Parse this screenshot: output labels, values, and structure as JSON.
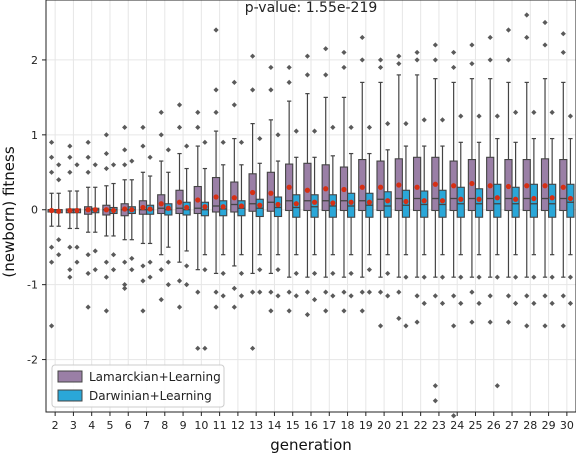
{
  "chart_data": {
    "type": "box",
    "title": "p-value: 1.55e-219",
    "xlabel": "generation",
    "ylabel": "(newborn) fitness",
    "categories": [
      "2",
      "3",
      "4",
      "5",
      "6",
      "7",
      "8",
      "9",
      "10",
      "11",
      "12",
      "13",
      "14",
      "15",
      "16",
      "17",
      "18",
      "19",
      "20",
      "21",
      "22",
      "23",
      "24",
      "25",
      "26",
      "27",
      "28",
      "29",
      "30"
    ],
    "ylim": [
      -2.7,
      2.8
    ],
    "yticks": [
      -2,
      -1,
      0,
      1,
      2
    ],
    "grid": true,
    "legend_position": "lower-left",
    "series": [
      {
        "name": "Lamarckian+Learning",
        "color": "#9a7fa6",
        "median": [
          0.0,
          -0.01,
          0.0,
          0.0,
          0.0,
          0.0,
          0.02,
          0.02,
          0.02,
          0.05,
          0.07,
          0.08,
          0.1,
          0.12,
          0.12,
          0.12,
          0.12,
          0.12,
          0.14,
          0.15,
          0.15,
          0.15,
          0.15,
          0.15,
          0.15,
          0.15,
          0.15,
          0.15,
          0.15
        ],
        "q1": [
          -0.03,
          -0.04,
          -0.06,
          -0.07,
          -0.08,
          -0.06,
          -0.05,
          -0.05,
          -0.05,
          -0.03,
          -0.03,
          -0.02,
          -0.02,
          -0.01,
          -0.01,
          -0.01,
          -0.01,
          -0.01,
          -0.01,
          -0.01,
          -0.01,
          -0.01,
          -0.01,
          -0.01,
          -0.01,
          -0.01,
          -0.01,
          -0.01,
          -0.01
        ],
        "q3": [
          0.0,
          0.01,
          0.04,
          0.06,
          0.08,
          0.12,
          0.2,
          0.26,
          0.31,
          0.43,
          0.37,
          0.48,
          0.5,
          0.61,
          0.62,
          0.6,
          0.57,
          0.67,
          0.65,
          0.68,
          0.7,
          0.7,
          0.65,
          0.67,
          0.7,
          0.67,
          0.67,
          0.68,
          0.67
        ],
        "whisker_low": [
          -0.22,
          -0.25,
          -0.3,
          -0.35,
          -0.4,
          -0.45,
          -0.6,
          -0.7,
          -0.8,
          -0.85,
          -0.75,
          -0.85,
          -0.85,
          -0.9,
          -0.9,
          -0.9,
          -0.9,
          -0.9,
          -0.9,
          -0.9,
          -0.9,
          -0.9,
          -0.9,
          -0.9,
          -0.9,
          -0.9,
          -0.9,
          -0.9,
          -0.9
        ],
        "whisker_high": [
          0.22,
          0.25,
          0.3,
          0.32,
          0.4,
          0.5,
          0.65,
          0.75,
          0.85,
          1.05,
          0.95,
          1.15,
          1.2,
          1.45,
          1.55,
          1.5,
          1.5,
          1.7,
          1.7,
          1.8,
          1.8,
          1.75,
          1.7,
          1.75,
          1.75,
          1.7,
          1.7,
          1.75,
          1.7
        ],
        "mean": [
          -0.01,
          -0.01,
          0.0,
          0.0,
          0.01,
          0.03,
          0.08,
          0.1,
          0.13,
          0.17,
          0.16,
          0.23,
          0.22,
          0.3,
          0.26,
          0.28,
          0.27,
          0.3,
          0.3,
          0.33,
          0.3,
          0.34,
          0.32,
          0.35,
          0.32,
          0.31,
          0.32,
          0.32,
          0.3
        ]
      },
      {
        "name": "Darwinian+Learning",
        "color": "#2aa7d8",
        "median": [
          0.0,
          0.0,
          0.0,
          0.0,
          0.0,
          0.0,
          0.0,
          0.0,
          0.0,
          0.01,
          0.02,
          0.02,
          0.03,
          0.03,
          0.04,
          0.05,
          0.05,
          0.06,
          0.05,
          0.06,
          0.07,
          0.07,
          0.08,
          0.08,
          0.08,
          0.08,
          0.08,
          0.08,
          0.1
        ],
        "q1": [
          -0.04,
          -0.04,
          -0.04,
          -0.05,
          -0.05,
          -0.06,
          -0.07,
          -0.07,
          -0.08,
          -0.08,
          -0.08,
          -0.09,
          -0.09,
          -0.1,
          -0.1,
          -0.1,
          -0.1,
          -0.1,
          -0.1,
          -0.1,
          -0.1,
          -0.1,
          -0.1,
          -0.1,
          -0.1,
          -0.1,
          -0.1,
          -0.1,
          -0.1
        ],
        "q3": [
          0.0,
          0.01,
          0.02,
          0.03,
          0.04,
          0.06,
          0.08,
          0.1,
          0.1,
          0.12,
          0.12,
          0.14,
          0.17,
          0.2,
          0.2,
          0.2,
          0.22,
          0.22,
          0.24,
          0.26,
          0.25,
          0.26,
          0.3,
          0.28,
          0.34,
          0.3,
          0.34,
          0.34,
          0.34
        ],
        "whisker_low": [
          -0.22,
          -0.25,
          -0.3,
          -0.35,
          -0.4,
          -0.45,
          -0.5,
          -0.55,
          -0.6,
          -0.6,
          -0.6,
          -0.6,
          -0.6,
          -0.6,
          -0.6,
          -0.6,
          -0.6,
          -0.6,
          -0.6,
          -0.6,
          -0.6,
          -0.6,
          -0.6,
          -0.6,
          -0.6,
          -0.6,
          -0.6,
          -0.6,
          -0.6
        ],
        "whisker_high": [
          0.22,
          0.25,
          0.3,
          0.35,
          0.4,
          0.45,
          0.5,
          0.55,
          0.55,
          0.6,
          0.6,
          0.62,
          0.65,
          0.7,
          0.7,
          0.72,
          0.75,
          0.75,
          0.8,
          0.85,
          0.85,
          0.85,
          0.9,
          0.9,
          0.95,
          0.9,
          0.95,
          0.95,
          0.95
        ],
        "mean": [
          -0.02,
          -0.01,
          0.0,
          -0.01,
          0.0,
          0.01,
          0.02,
          0.03,
          0.04,
          0.04,
          0.05,
          0.06,
          0.07,
          0.08,
          0.1,
          0.09,
          0.1,
          0.1,
          0.12,
          0.11,
          0.12,
          0.12,
          0.14,
          0.14,
          0.16,
          0.14,
          0.15,
          0.16,
          0.15
        ]
      }
    ],
    "outliers": [
      {
        "category": "2",
        "series": 0,
        "values": [
          0.9,
          0.7,
          0.5,
          -0.5,
          -0.7,
          -1.55
        ]
      },
      {
        "category": "2",
        "series": 1,
        "values": [
          0.6,
          0.4,
          -0.4,
          -0.6
        ]
      },
      {
        "category": "3",
        "series": 0,
        "values": [
          0.85,
          0.7,
          0.5,
          -0.5,
          -0.8,
          -0.9
        ]
      },
      {
        "category": "3",
        "series": 1,
        "values": [
          0.6,
          -0.5,
          -0.7
        ]
      },
      {
        "category": "4",
        "series": 0,
        "values": [
          0.9,
          0.7,
          0.5,
          -0.6,
          -0.85,
          -1.3
        ]
      },
      {
        "category": "4",
        "series": 1,
        "values": [
          0.6,
          -0.55,
          -0.8
        ]
      },
      {
        "category": "5",
        "series": 0,
        "values": [
          1.0,
          0.75,
          0.55,
          -0.7,
          -0.9,
          -1.35
        ]
      },
      {
        "category": "5",
        "series": 1,
        "values": [
          0.6,
          -0.6,
          -0.8
        ]
      },
      {
        "category": "6",
        "series": 0,
        "values": [
          1.1,
          0.8,
          0.6,
          -0.7,
          -1.0,
          -1.05
        ]
      },
      {
        "category": "6",
        "series": 1,
        "values": [
          0.65,
          -0.65,
          -0.8
        ]
      },
      {
        "category": "7",
        "series": 0,
        "values": [
          1.1,
          0.85,
          -0.75,
          -0.95,
          -1.35
        ]
      },
      {
        "category": "7",
        "series": 1,
        "values": [
          0.7,
          -0.7,
          -0.9
        ]
      },
      {
        "category": "8",
        "series": 0,
        "values": [
          1.3,
          1.0,
          -0.8,
          -1.2
        ]
      },
      {
        "category": "8",
        "series": 1,
        "values": [
          0.8,
          -0.7,
          -1.0
        ]
      },
      {
        "category": "9",
        "series": 0,
        "values": [
          1.4,
          1.1,
          -0.95,
          -1.3
        ]
      },
      {
        "category": "9",
        "series": 1,
        "values": [
          0.85,
          -0.75,
          -1.0
        ]
      },
      {
        "category": "10",
        "series": 0,
        "values": [
          1.3,
          1.1,
          -1.1,
          -1.85
        ]
      },
      {
        "category": "10",
        "series": 1,
        "values": [
          0.9,
          -0.8,
          -1.85
        ]
      },
      {
        "category": "11",
        "series": 0,
        "values": [
          2.4,
          1.6,
          1.3,
          -1.1,
          -1.3
        ]
      },
      {
        "category": "11",
        "series": 1,
        "values": [
          0.9,
          -0.85,
          -1.15
        ]
      },
      {
        "category": "12",
        "series": 0,
        "values": [
          1.7,
          1.4,
          -1.05,
          -1.3
        ]
      },
      {
        "category": "12",
        "series": 1,
        "values": [
          0.9,
          -0.85,
          -1.15
        ]
      },
      {
        "category": "13",
        "series": 0,
        "values": [
          2.05,
          1.6,
          -1.1,
          -1.85
        ]
      },
      {
        "category": "13",
        "series": 1,
        "values": [
          0.95,
          -0.8,
          -1.1
        ]
      },
      {
        "category": "14",
        "series": 0,
        "values": [
          1.9,
          1.6,
          -1.1,
          -1.35
        ]
      },
      {
        "category": "14",
        "series": 1,
        "values": [
          1.0,
          -0.8,
          -1.15
        ]
      },
      {
        "category": "15",
        "series": 0,
        "values": [
          1.9,
          1.7,
          -1.1,
          -1.35
        ]
      },
      {
        "category": "15",
        "series": 1,
        "values": [
          1.05,
          -0.85,
          -1.15
        ]
      },
      {
        "category": "16",
        "series": 0,
        "values": [
          2.05,
          1.8,
          -1.1,
          -1.4
        ]
      },
      {
        "category": "16",
        "series": 1,
        "values": [
          1.05,
          -0.85,
          -1.2
        ]
      },
      {
        "category": "17",
        "series": 0,
        "values": [
          2.15,
          1.8,
          -1.1,
          -1.35
        ]
      },
      {
        "category": "17",
        "series": 1,
        "values": [
          1.1,
          -0.85,
          -1.15
        ]
      },
      {
        "category": "18",
        "series": 0,
        "values": [
          2.1,
          1.9,
          -1.1,
          -1.35
        ]
      },
      {
        "category": "18",
        "series": 1,
        "values": [
          1.1,
          -0.85,
          -1.15
        ]
      },
      {
        "category": "19",
        "series": 0,
        "values": [
          2.3,
          2.0,
          -1.1,
          -1.35
        ]
      },
      {
        "category": "19",
        "series": 1,
        "values": [
          1.1,
          -0.8,
          -1.1
        ]
      },
      {
        "category": "20",
        "series": 0,
        "values": [
          2.0,
          1.9,
          -1.1,
          -1.55
        ]
      },
      {
        "category": "20",
        "series": 1,
        "values": [
          1.15,
          -0.85,
          -1.15
        ]
      },
      {
        "category": "21",
        "series": 0,
        "values": [
          2.05,
          1.95,
          -1.1,
          -1.45
        ]
      },
      {
        "category": "21",
        "series": 1,
        "values": [
          1.15,
          -0.9,
          -1.55
        ]
      },
      {
        "category": "22",
        "series": 0,
        "values": [
          2.1,
          2.0,
          -1.15,
          -1.5
        ]
      },
      {
        "category": "22",
        "series": 1,
        "values": [
          1.2,
          -0.9,
          -1.25
        ]
      },
      {
        "category": "23",
        "series": 0,
        "values": [
          2.2,
          2.0,
          -1.15,
          -2.35,
          -2.55
        ]
      },
      {
        "category": "23",
        "series": 1,
        "values": [
          1.2,
          -0.9,
          -1.25
        ]
      },
      {
        "category": "24",
        "series": 0,
        "values": [
          2.1,
          1.9,
          -1.15,
          -1.55,
          -2.75
        ]
      },
      {
        "category": "24",
        "series": 1,
        "values": [
          1.25,
          -0.9,
          -1.25
        ]
      },
      {
        "category": "25",
        "series": 0,
        "values": [
          2.2,
          1.95,
          -1.1,
          -1.5
        ]
      },
      {
        "category": "25",
        "series": 1,
        "values": [
          1.25,
          -0.9,
          -1.25
        ]
      },
      {
        "category": "26",
        "series": 0,
        "values": [
          2.3,
          2.0,
          -1.15,
          -1.5
        ]
      },
      {
        "category": "26",
        "series": 1,
        "values": [
          1.25,
          -0.9,
          -2.35
        ]
      },
      {
        "category": "27",
        "series": 0,
        "values": [
          2.4,
          2.0,
          -1.15,
          -1.5
        ]
      },
      {
        "category": "27",
        "series": 1,
        "values": [
          1.3,
          -0.9,
          -1.25
        ]
      },
      {
        "category": "28",
        "series": 0,
        "values": [
          2.6,
          2.3,
          -1.15,
          -1.55
        ]
      },
      {
        "category": "28",
        "series": 1,
        "values": [
          1.3,
          -0.9,
          -1.25
        ]
      },
      {
        "category": "29",
        "series": 0,
        "values": [
          2.5,
          2.2,
          -1.15,
          -1.55
        ]
      },
      {
        "category": "29",
        "series": 1,
        "values": [
          1.3,
          -0.9,
          -1.25
        ]
      },
      {
        "category": "30",
        "series": 0,
        "values": [
          2.35,
          2.1,
          -1.15,
          -1.55
        ]
      },
      {
        "category": "30",
        "series": 1,
        "values": [
          1.25,
          -0.9,
          -1.25
        ]
      }
    ],
    "mean_marker_color": "#d62f14",
    "outlier_color": "#5a5a5a",
    "whisker_color": "#444444",
    "median_color": "#444444",
    "grid_color": "#e6e6e6"
  }
}
